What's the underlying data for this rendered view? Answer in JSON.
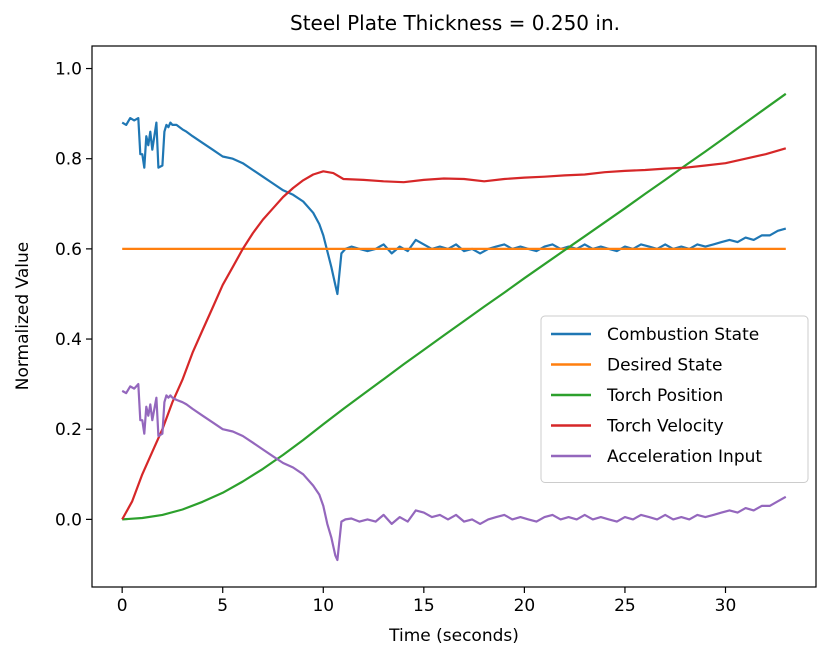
{
  "chart_data": {
    "type": "line",
    "title": "Steel Plate Thickness = 0.250 in.",
    "xlabel": "Time (seconds)",
    "ylabel": "Normalized Value",
    "xlim": [
      -1.5,
      34.5
    ],
    "ylim": [
      -0.15,
      1.05
    ],
    "xticks": [
      0,
      5,
      10,
      15,
      20,
      25,
      30
    ],
    "xtick_labels": [
      "0",
      "5",
      "10",
      "15",
      "20",
      "25",
      "30"
    ],
    "yticks": [
      0.0,
      0.2,
      0.4,
      0.6,
      0.8,
      1.0
    ],
    "ytick_labels": [
      "0.0",
      "0.2",
      "0.4",
      "0.6",
      "0.8",
      "1.0"
    ],
    "grid": false,
    "legend_position": "center-right",
    "series": [
      {
        "name": "Combustion State",
        "color": "#1f77b4",
        "x": [
          0,
          0.2,
          0.4,
          0.6,
          0.8,
          0.9,
          1.0,
          1.1,
          1.2,
          1.3,
          1.4,
          1.5,
          1.7,
          1.8,
          2.0,
          2.1,
          2.2,
          2.3,
          2.4,
          2.5,
          2.7,
          3.0,
          3.2,
          3.5,
          4.0,
          4.5,
          5.0,
          5.5,
          6.0,
          6.5,
          7.0,
          7.5,
          8.0,
          8.5,
          9.0,
          9.5,
          9.8,
          10.0,
          10.2,
          10.4,
          10.6,
          10.7,
          10.9,
          11.1,
          11.4,
          11.8,
          12.2,
          12.6,
          13.0,
          13.4,
          13.8,
          14.2,
          14.6,
          15.0,
          15.4,
          15.8,
          16.2,
          16.6,
          17.0,
          17.4,
          17.8,
          18.2,
          18.6,
          19.0,
          19.4,
          19.8,
          20.2,
          20.6,
          21.0,
          21.4,
          21.8,
          22.2,
          22.6,
          23.0,
          23.4,
          23.8,
          24.2,
          24.6,
          25.0,
          25.4,
          25.8,
          26.2,
          26.6,
          27.0,
          27.4,
          27.8,
          28.2,
          28.6,
          29.0,
          29.4,
          29.8,
          30.2,
          30.6,
          31.0,
          31.4,
          31.8,
          32.2,
          32.6,
          33.0
        ],
        "y": [
          0.88,
          0.875,
          0.89,
          0.885,
          0.89,
          0.81,
          0.81,
          0.78,
          0.85,
          0.83,
          0.86,
          0.82,
          0.88,
          0.78,
          0.785,
          0.86,
          0.875,
          0.87,
          0.88,
          0.875,
          0.875,
          0.865,
          0.86,
          0.85,
          0.835,
          0.82,
          0.805,
          0.8,
          0.79,
          0.775,
          0.76,
          0.745,
          0.73,
          0.72,
          0.705,
          0.68,
          0.655,
          0.63,
          0.595,
          0.56,
          0.52,
          0.5,
          0.59,
          0.6,
          0.605,
          0.6,
          0.595,
          0.6,
          0.61,
          0.59,
          0.605,
          0.595,
          0.62,
          0.61,
          0.6,
          0.605,
          0.6,
          0.61,
          0.595,
          0.6,
          0.59,
          0.6,
          0.605,
          0.61,
          0.6,
          0.605,
          0.6,
          0.595,
          0.605,
          0.61,
          0.6,
          0.605,
          0.6,
          0.61,
          0.6,
          0.605,
          0.6,
          0.595,
          0.605,
          0.6,
          0.61,
          0.605,
          0.6,
          0.61,
          0.6,
          0.605,
          0.6,
          0.61,
          0.605,
          0.61,
          0.615,
          0.62,
          0.615,
          0.625,
          0.62,
          0.63,
          0.63,
          0.64,
          0.645
        ]
      },
      {
        "name": "Desired State",
        "color": "#ff7f0e",
        "x": [
          0,
          33
        ],
        "y": [
          0.6,
          0.6
        ]
      },
      {
        "name": "Torch Position",
        "color": "#2ca02c",
        "x": [
          0,
          1,
          2,
          3,
          4,
          5,
          6,
          7,
          8,
          9,
          10,
          11,
          12,
          13,
          14,
          15,
          16,
          17,
          18,
          19,
          20,
          21,
          22,
          23,
          24,
          25,
          26,
          27,
          28,
          29,
          30,
          31,
          32,
          33
        ],
        "y": [
          0.0,
          0.003,
          0.01,
          0.022,
          0.039,
          0.059,
          0.084,
          0.112,
          0.143,
          0.176,
          0.211,
          0.245,
          0.278,
          0.311,
          0.344,
          0.376,
          0.408,
          0.44,
          0.472,
          0.503,
          0.535,
          0.566,
          0.597,
          0.628,
          0.659,
          0.69,
          0.722,
          0.753,
          0.785,
          0.816,
          0.848,
          0.88,
          0.912,
          0.944
        ]
      },
      {
        "name": "Torch Velocity",
        "color": "#d62728",
        "x": [
          0,
          0.5,
          1,
          1.5,
          2,
          2.5,
          3,
          3.5,
          4,
          4.5,
          5,
          5.5,
          6,
          6.5,
          7,
          7.5,
          8,
          8.5,
          9,
          9.5,
          10,
          10.5,
          11,
          12,
          13,
          14,
          15,
          16,
          17,
          18,
          19,
          20,
          21,
          22,
          23,
          24,
          25,
          26,
          27,
          28,
          29,
          30,
          31,
          32,
          33
        ],
        "y": [
          0.0,
          0.04,
          0.1,
          0.15,
          0.2,
          0.26,
          0.31,
          0.37,
          0.42,
          0.47,
          0.52,
          0.56,
          0.6,
          0.635,
          0.665,
          0.69,
          0.715,
          0.735,
          0.752,
          0.765,
          0.772,
          0.768,
          0.755,
          0.753,
          0.75,
          0.748,
          0.753,
          0.756,
          0.755,
          0.75,
          0.755,
          0.758,
          0.76,
          0.763,
          0.765,
          0.77,
          0.773,
          0.775,
          0.778,
          0.78,
          0.785,
          0.79,
          0.8,
          0.81,
          0.823
        ]
      },
      {
        "name": "Acceleration Input",
        "color": "#9467bd",
        "x": [
          0,
          0.2,
          0.4,
          0.6,
          0.8,
          0.9,
          1.0,
          1.1,
          1.2,
          1.3,
          1.4,
          1.5,
          1.7,
          1.8,
          2.0,
          2.1,
          2.2,
          2.3,
          2.4,
          2.5,
          2.7,
          3.0,
          3.2,
          3.5,
          4.0,
          4.5,
          5.0,
          5.5,
          6.0,
          6.5,
          7.0,
          7.5,
          8.0,
          8.5,
          9.0,
          9.5,
          9.8,
          10.0,
          10.2,
          10.4,
          10.6,
          10.7,
          10.9,
          11.1,
          11.4,
          11.8,
          12.2,
          12.6,
          13.0,
          13.4,
          13.8,
          14.2,
          14.6,
          15.0,
          15.4,
          15.8,
          16.2,
          16.6,
          17.0,
          17.4,
          17.8,
          18.2,
          18.6,
          19.0,
          19.4,
          19.8,
          20.2,
          20.6,
          21.0,
          21.4,
          21.8,
          22.2,
          22.6,
          23.0,
          23.4,
          23.8,
          24.2,
          24.6,
          25.0,
          25.4,
          25.8,
          26.2,
          26.6,
          27.0,
          27.4,
          27.8,
          28.2,
          28.6,
          29.0,
          29.4,
          29.8,
          30.2,
          30.6,
          31.0,
          31.4,
          31.8,
          32.2,
          32.6,
          33.0
        ],
        "y": [
          0.285,
          0.28,
          0.295,
          0.29,
          0.3,
          0.22,
          0.22,
          0.19,
          0.25,
          0.23,
          0.255,
          0.22,
          0.27,
          0.185,
          0.19,
          0.26,
          0.275,
          0.27,
          0.275,
          0.27,
          0.265,
          0.26,
          0.255,
          0.245,
          0.23,
          0.215,
          0.2,
          0.195,
          0.185,
          0.17,
          0.155,
          0.14,
          0.125,
          0.115,
          0.1,
          0.075,
          0.055,
          0.03,
          -0.01,
          -0.04,
          -0.08,
          -0.09,
          -0.005,
          0.0,
          0.002,
          -0.005,
          0.0,
          -0.005,
          0.01,
          -0.01,
          0.005,
          -0.005,
          0.02,
          0.015,
          0.005,
          0.01,
          0.0,
          0.01,
          -0.005,
          0.0,
          -0.01,
          0.0,
          0.005,
          0.01,
          0.0,
          0.005,
          0.0,
          -0.005,
          0.005,
          0.01,
          0.0,
          0.005,
          0.0,
          0.01,
          0.0,
          0.005,
          0.0,
          -0.005,
          0.005,
          0.0,
          0.01,
          0.005,
          0.0,
          0.01,
          0.0,
          0.005,
          0.0,
          0.01,
          0.005,
          0.01,
          0.015,
          0.02,
          0.015,
          0.025,
          0.02,
          0.03,
          0.03,
          0.04,
          0.05
        ]
      }
    ]
  }
}
